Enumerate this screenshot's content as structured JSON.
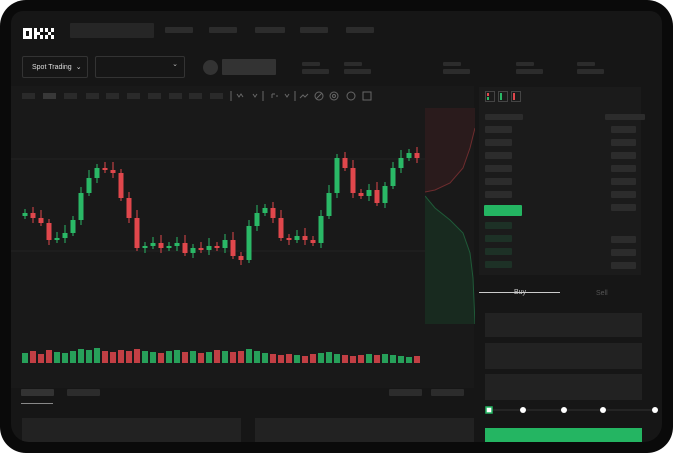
{
  "brand": {
    "logo_text": "OKX"
  },
  "toolbar": {
    "mode_label": "Spot Trading"
  },
  "trade": {
    "tabs": [
      {
        "label": "Buy",
        "active": true
      },
      {
        "label": "Sell",
        "active": false
      }
    ]
  },
  "colors": {
    "up": "#2ab866",
    "down": "#e0474c",
    "accent": "#24b562",
    "background": "#161616"
  },
  "slider": {
    "value_percent": 0,
    "stops": [
      0,
      25,
      50,
      75,
      100
    ]
  },
  "chart_data": {
    "type": "candlestick",
    "close": [
      95,
      90,
      85,
      68,
      70,
      75,
      88,
      115,
      130,
      140,
      138,
      135,
      110,
      90,
      60,
      62,
      65,
      60,
      62,
      65,
      55,
      60,
      58,
      62,
      60,
      68,
      52,
      48,
      82,
      95,
      100,
      90,
      70,
      68,
      72,
      68,
      65,
      92,
      115,
      150,
      140,
      115,
      112,
      118,
      105,
      122,
      140,
      150,
      155,
      150
    ],
    "volume": [
      10,
      12,
      9,
      13,
      11,
      10,
      12,
      14,
      13,
      15,
      12,
      11,
      13,
      12,
      14,
      12,
      11,
      10,
      12,
      13,
      11,
      12,
      10,
      11,
      13,
      12,
      11,
      12,
      14,
      12,
      10,
      9,
      8,
      9,
      8,
      7,
      9,
      10,
      11,
      9,
      8,
      7,
      8,
      9,
      8,
      9,
      8,
      7,
      6,
      7
    ]
  }
}
